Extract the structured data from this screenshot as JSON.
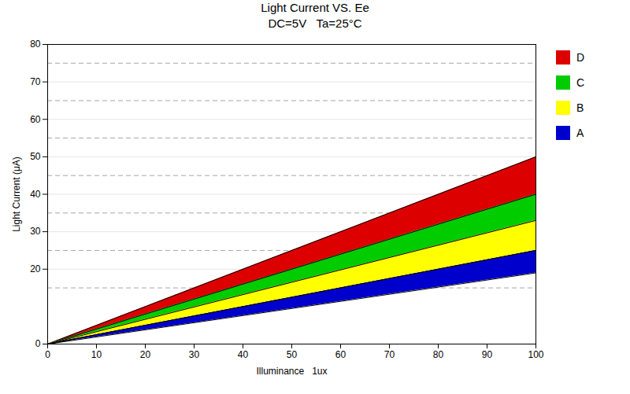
{
  "chart_data": {
    "type": "area",
    "title": "Light Current VS. Ee",
    "subtitle": "DC=5V   Ta=25°C",
    "x_label": "Illuminance   1ux",
    "y_label": "Light Current (μA)",
    "xlim": [
      0,
      100
    ],
    "ylim": [
      0,
      80
    ],
    "xticks": [
      0,
      10,
      20,
      30,
      40,
      50,
      60,
      70,
      80,
      90,
      100
    ],
    "yticks": [
      0,
      20,
      30,
      40,
      50,
      60,
      70,
      80
    ],
    "grid": true,
    "dashed_gridlines": [
      15,
      25,
      35,
      45,
      55,
      65,
      75
    ],
    "legend": "right",
    "x": [
      0,
      100
    ],
    "series": [
      {
        "name": "D",
        "color": "#dd0000",
        "lower": [
          0,
          40
        ],
        "upper": [
          0,
          50
        ]
      },
      {
        "name": "C",
        "color": "#00cc00",
        "lower": [
          0,
          33
        ],
        "upper": [
          0,
          40
        ]
      },
      {
        "name": "B",
        "color": "#ffff00",
        "lower": [
          0,
          25
        ],
        "upper": [
          0,
          33
        ]
      },
      {
        "name": "A",
        "color": "#0000cc",
        "lower": [
          0,
          19
        ],
        "upper": [
          0,
          25
        ]
      }
    ]
  }
}
